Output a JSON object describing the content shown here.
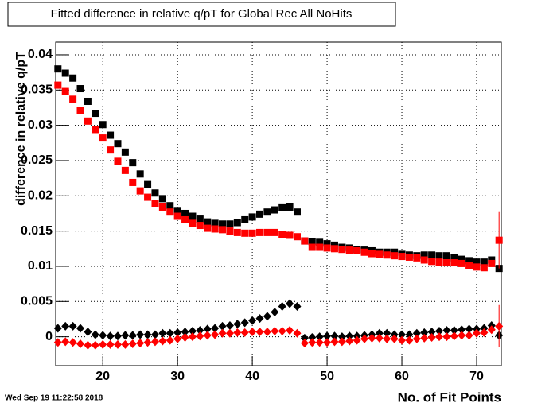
{
  "chart_data": {
    "type": "scatter",
    "title": "Fitted difference in relative q/pT for Global Rec All NoHits",
    "x_label": "No. of Fit Points",
    "y_label": "difference in relative q/pT",
    "timestamp": "Wed Sep 19 11:22:58 2018",
    "x": [
      14,
      15,
      16,
      17,
      18,
      19,
      20,
      21,
      22,
      23,
      24,
      25,
      26,
      27,
      28,
      29,
      30,
      31,
      32,
      33,
      34,
      35,
      36,
      37,
      38,
      39,
      40,
      41,
      42,
      43,
      44,
      45,
      46,
      47,
      48,
      49,
      50,
      51,
      52,
      53,
      54,
      55,
      56,
      57,
      58,
      59,
      60,
      61,
      62,
      63,
      64,
      65,
      66,
      67,
      68,
      69,
      70,
      71,
      72,
      73
    ],
    "series": [
      {
        "name": "black squares",
        "color": "#000000",
        "marker": "square",
        "values": [
          0.038,
          0.0374,
          0.0367,
          0.0352,
          0.0334,
          0.0317,
          0.0301,
          0.0286,
          0.0274,
          0.0262,
          0.0247,
          0.0231,
          0.0216,
          0.0204,
          0.0196,
          0.0186,
          0.0178,
          0.0175,
          0.0171,
          0.0167,
          0.0163,
          0.0161,
          0.016,
          0.016,
          0.0162,
          0.0166,
          0.017,
          0.0174,
          0.0177,
          0.018,
          0.0183,
          0.0184,
          0.0177,
          0.0136,
          0.0135,
          0.0134,
          0.0132,
          0.013,
          0.0127,
          0.0126,
          0.0124,
          0.0123,
          0.0122,
          0.012,
          0.012,
          0.012,
          0.0117,
          0.0116,
          0.0115,
          0.0116,
          0.0116,
          0.0115,
          0.0115,
          0.0112,
          0.011,
          0.0108,
          0.0106,
          0.0106,
          0.0109,
          0.0097
        ]
      },
      {
        "name": "red squares",
        "color": "#ff0000",
        "marker": "square",
        "values": [
          0.0357,
          0.0348,
          0.0337,
          0.0321,
          0.0306,
          0.0294,
          0.0282,
          0.0265,
          0.0249,
          0.0236,
          0.0219,
          0.0207,
          0.0198,
          0.0189,
          0.0184,
          0.0177,
          0.0171,
          0.0166,
          0.0161,
          0.0158,
          0.0154,
          0.0153,
          0.0152,
          0.015,
          0.0148,
          0.0147,
          0.0147,
          0.0148,
          0.0148,
          0.0148,
          0.0145,
          0.0144,
          0.0142,
          0.0136,
          0.0127,
          0.0127,
          0.0126,
          0.0125,
          0.0124,
          0.0123,
          0.0122,
          0.012,
          0.0118,
          0.0117,
          0.0116,
          0.0115,
          0.0114,
          0.0113,
          0.0112,
          0.0109,
          0.0107,
          0.0106,
          0.0105,
          0.0105,
          0.0104,
          0.0101,
          0.0099,
          0.0098,
          0.0104,
          0.0137
        ],
        "errors": [
          null,
          null,
          null,
          null,
          null,
          null,
          null,
          null,
          null,
          null,
          null,
          null,
          null,
          null,
          null,
          null,
          null,
          null,
          null,
          null,
          null,
          null,
          null,
          null,
          null,
          null,
          null,
          null,
          null,
          null,
          null,
          null,
          null,
          null,
          null,
          null,
          null,
          null,
          null,
          null,
          null,
          null,
          null,
          null,
          null,
          null,
          null,
          null,
          null,
          null,
          null,
          null,
          null,
          null,
          null,
          null,
          null,
          null,
          null,
          0.004
        ]
      },
      {
        "name": "black diamonds",
        "color": "#000000",
        "marker": "diamond",
        "values": [
          0.0012,
          0.0015,
          0.0015,
          0.0012,
          0.0007,
          0.0003,
          0.0002,
          0.0001,
          0.0001,
          0.0002,
          0.0002,
          0.0003,
          0.0003,
          0.0003,
          0.0005,
          0.0005,
          0.0006,
          0.0007,
          0.0008,
          0.0009,
          0.0011,
          0.0012,
          0.0015,
          0.0016,
          0.0018,
          0.002,
          0.0023,
          0.0026,
          0.0029,
          0.0035,
          0.0043,
          0.0047,
          0.0043,
          -0.0002,
          -0.0001,
          0,
          0.0001,
          0.0001,
          0,
          0.0001,
          0.0001,
          0.0002,
          0.0003,
          0.0005,
          0.0005,
          0.0003,
          0.0003,
          0.0003,
          0.0005,
          0.0006,
          0.0007,
          0.0008,
          0.0009,
          0.0009,
          0.001,
          0.0011,
          0.0011,
          0.0012,
          0.0016,
          0.0002
        ]
      },
      {
        "name": "red diamonds",
        "color": "#ff0000",
        "marker": "diamond",
        "values": [
          -0.0008,
          -0.0007,
          -0.0008,
          -0.001,
          -0.0012,
          -0.0012,
          -0.0011,
          -0.0011,
          -0.0011,
          -0.0011,
          -0.001,
          -0.0009,
          -0.0008,
          -0.0007,
          -0.0006,
          -0.0005,
          -0.0003,
          -0.0001,
          0,
          0.0001,
          0.0002,
          0.0003,
          0.0005,
          0.0005,
          0.0006,
          0.0006,
          0.0007,
          0.0007,
          0.0007,
          0.0008,
          0.0008,
          0.0009,
          0.0005,
          -0.0009,
          -0.0008,
          -0.0008,
          -0.0008,
          -0.0007,
          -0.0007,
          -0.0006,
          -0.0005,
          -0.0003,
          -0.0002,
          -0.0002,
          -0.0003,
          -0.0003,
          -0.0005,
          -0.0005,
          -0.0003,
          -0.0002,
          -0.0001,
          0,
          0,
          0.0001,
          0.0002,
          0.0002,
          0.0005,
          0.0006,
          0.001,
          0.0015
        ],
        "errors": [
          null,
          null,
          null,
          null,
          null,
          null,
          null,
          null,
          null,
          null,
          null,
          null,
          null,
          null,
          null,
          null,
          null,
          null,
          null,
          null,
          null,
          null,
          null,
          null,
          null,
          null,
          null,
          null,
          null,
          null,
          null,
          null,
          null,
          null,
          null,
          null,
          null,
          null,
          null,
          null,
          null,
          null,
          null,
          null,
          null,
          null,
          null,
          null,
          null,
          null,
          null,
          null,
          null,
          null,
          null,
          null,
          null,
          null,
          null,
          0.003
        ]
      }
    ],
    "xlim": [
      13.7,
      73.3
    ],
    "xticks": [
      20,
      30,
      40,
      50,
      60,
      70
    ],
    "ylim": [
      -0.0041,
      0.0418
    ],
    "yticks": [
      0,
      0.005,
      0.01,
      0.015,
      0.02,
      0.025,
      0.03,
      0.035,
      0.04
    ],
    "grid": true
  }
}
